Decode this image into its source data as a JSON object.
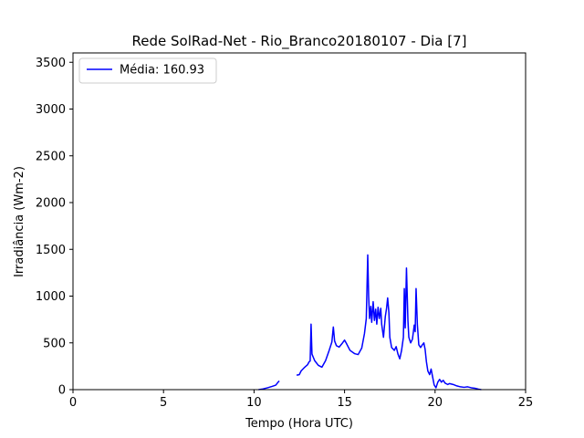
{
  "chart_data": {
    "type": "line",
    "title": "Rede SolRad-Net - Rio_Branco20180107 - Dia [7]",
    "xlabel": "Tempo (Hora UTC)",
    "ylabel": "Irradiância (Wm-2)",
    "xlim": [
      0,
      25
    ],
    "ylim": [
      0,
      3600
    ],
    "xticks": [
      0,
      5,
      10,
      15,
      20,
      25
    ],
    "yticks": [
      0,
      500,
      1000,
      1500,
      2000,
      2500,
      3000,
      3500
    ],
    "grid": false,
    "legend_position": "upper-left",
    "series": [
      {
        "name": "Média: 160.93",
        "color": "#0000ff",
        "segments": [
          [
            [
              10.25,
              0
            ],
            [
              10.5,
              8
            ],
            [
              10.75,
              20
            ],
            [
              11.0,
              35
            ],
            [
              11.2,
              48
            ],
            [
              11.35,
              85
            ],
            [
              11.4,
              92
            ]
          ],
          [
            [
              12.35,
              155
            ],
            [
              12.5,
              160
            ],
            [
              12.6,
              200
            ],
            [
              12.8,
              240
            ],
            [
              12.95,
              265
            ],
            [
              13.05,
              300
            ],
            [
              13.1,
              305
            ],
            [
              13.15,
              700
            ],
            [
              13.2,
              380
            ],
            [
              13.35,
              310
            ],
            [
              13.55,
              260
            ],
            [
              13.75,
              240
            ],
            [
              13.95,
              310
            ],
            [
              14.15,
              420
            ],
            [
              14.3,
              510
            ],
            [
              14.38,
              670
            ],
            [
              14.45,
              520
            ],
            [
              14.55,
              470
            ],
            [
              14.7,
              455
            ],
            [
              14.85,
              490
            ],
            [
              15.0,
              530
            ],
            [
              15.1,
              495
            ],
            [
              15.3,
              420
            ],
            [
              15.55,
              385
            ],
            [
              15.75,
              375
            ],
            [
              15.95,
              445
            ],
            [
              16.1,
              600
            ],
            [
              16.2,
              760
            ],
            [
              16.28,
              1440
            ],
            [
              16.33,
              1000
            ],
            [
              16.38,
              760
            ],
            [
              16.45,
              890
            ],
            [
              16.5,
              720
            ],
            [
              16.58,
              940
            ],
            [
              16.65,
              740
            ],
            [
              16.72,
              860
            ],
            [
              16.78,
              700
            ],
            [
              16.85,
              880
            ],
            [
              16.92,
              760
            ],
            [
              17.0,
              870
            ],
            [
              17.05,
              700
            ],
            [
              17.15,
              560
            ],
            [
              17.25,
              780
            ],
            [
              17.32,
              870
            ],
            [
              17.38,
              980
            ],
            [
              17.45,
              820
            ],
            [
              17.5,
              560
            ],
            [
              17.6,
              450
            ],
            [
              17.75,
              420
            ],
            [
              17.85,
              460
            ],
            [
              17.95,
              380
            ],
            [
              18.05,
              330
            ],
            [
              18.15,
              420
            ],
            [
              18.25,
              560
            ],
            [
              18.3,
              1080
            ],
            [
              18.35,
              660
            ],
            [
              18.42,
              1300
            ],
            [
              18.5,
              740
            ],
            [
              18.55,
              560
            ],
            [
              18.65,
              500
            ],
            [
              18.75,
              540
            ],
            [
              18.85,
              690
            ],
            [
              18.9,
              620
            ],
            [
              18.95,
              1080
            ],
            [
              19.02,
              700
            ],
            [
              19.1,
              480
            ],
            [
              19.2,
              450
            ],
            [
              19.3,
              480
            ],
            [
              19.38,
              500
            ],
            [
              19.45,
              430
            ],
            [
              19.52,
              300
            ],
            [
              19.6,
              200
            ],
            [
              19.7,
              160
            ],
            [
              19.78,
              220
            ],
            [
              19.88,
              120
            ],
            [
              19.95,
              50
            ],
            [
              20.05,
              20
            ],
            [
              20.15,
              80
            ],
            [
              20.25,
              110
            ],
            [
              20.35,
              80
            ],
            [
              20.45,
              100
            ],
            [
              20.55,
              70
            ],
            [
              20.7,
              55
            ],
            [
              20.8,
              65
            ],
            [
              21.0,
              55
            ],
            [
              21.2,
              40
            ],
            [
              21.4,
              30
            ],
            [
              21.6,
              25
            ],
            [
              21.8,
              30
            ],
            [
              22.0,
              20
            ],
            [
              22.2,
              15
            ],
            [
              22.4,
              5
            ],
            [
              22.55,
              0
            ]
          ]
        ]
      }
    ]
  }
}
